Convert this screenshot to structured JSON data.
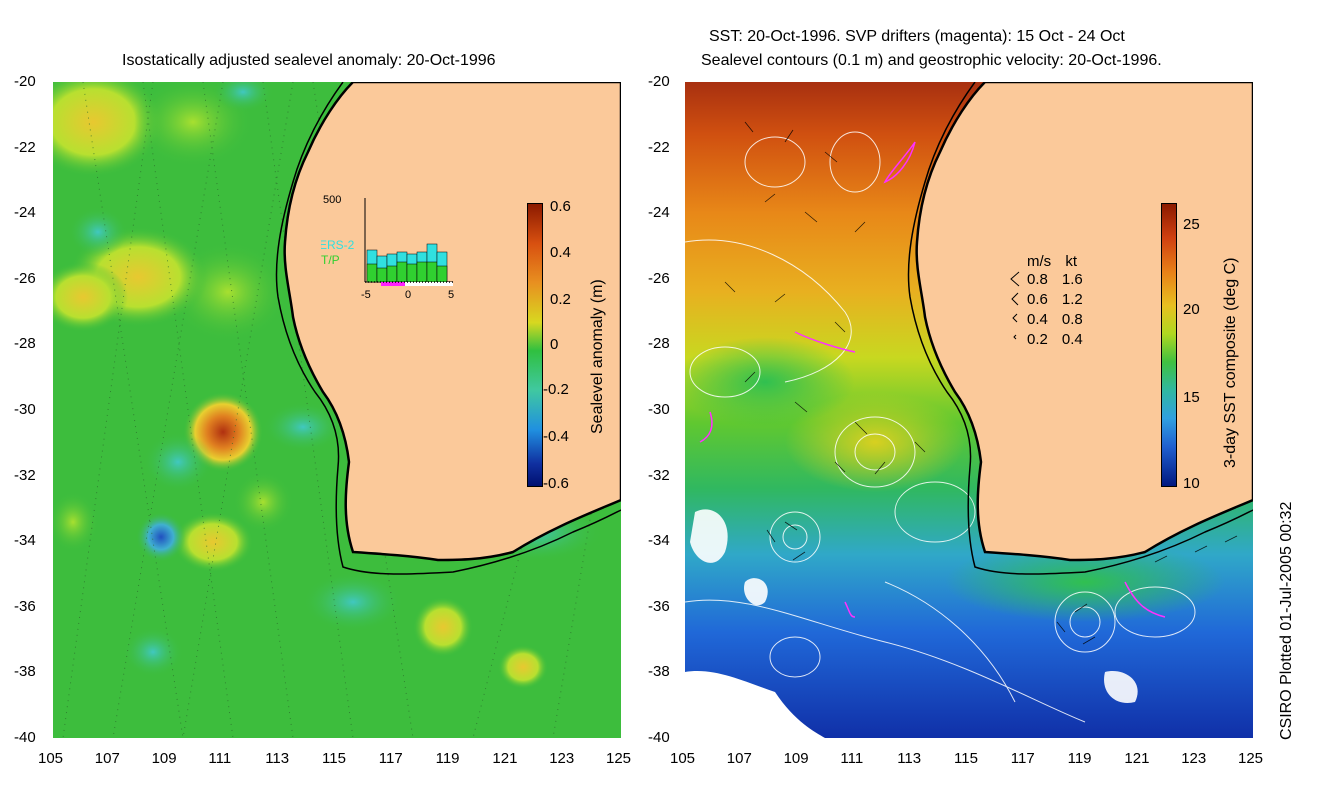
{
  "left": {
    "title": "Isostatically adjusted sealevel anomaly: 20-Oct-1996",
    "colorbar_label": "Sealevel anomaly (m)",
    "colorbar_ticks": [
      "0.6",
      "0.4",
      "0.2",
      "0",
      "-0.2",
      "-0.4",
      "-0.6"
    ],
    "inset": {
      "ymax_label": "500",
      "xticks": [
        "-5",
        "0",
        "5"
      ],
      "legend": [
        {
          "label": "ERS-2",
          "color": "#30e0e0"
        },
        {
          "label": "T/P",
          "color": "#30d030"
        }
      ]
    }
  },
  "right": {
    "title_line1": "SST: 20-Oct-1996. SVP drifters (magenta): 15 Oct - 24 Oct",
    "title_line2": "Sealevel contours (0.1 m) and geostrophic velocity: 20-Oct-1996.",
    "colorbar_label": "3-day SST composite (deg C)",
    "colorbar_ticks": [
      "25",
      "20",
      "15",
      "10"
    ],
    "velocity_key": {
      "header_ms": "m/s",
      "header_kt": "kt",
      "rows": [
        {
          "ms": "0.8",
          "kt": "1.6"
        },
        {
          "ms": "0.6",
          "kt": "1.2"
        },
        {
          "ms": "0.4",
          "kt": "0.8"
        },
        {
          "ms": "0.2",
          "kt": "0.4"
        }
      ]
    }
  },
  "y_ticks": [
    "-20",
    "-22",
    "-24",
    "-26",
    "-28",
    "-30",
    "-32",
    "-34",
    "-36",
    "-38",
    "-40"
  ],
  "x_ticks": [
    "105",
    "107",
    "109",
    "111",
    "113",
    "115",
    "117",
    "119",
    "121",
    "123",
    "125"
  ],
  "credit": "CSIRO Plotted 01-Jul-2005 00:32",
  "colors": {
    "land": "#fbc99a",
    "ocean_mid": "#3dbd3d",
    "coast": "#000000"
  }
}
